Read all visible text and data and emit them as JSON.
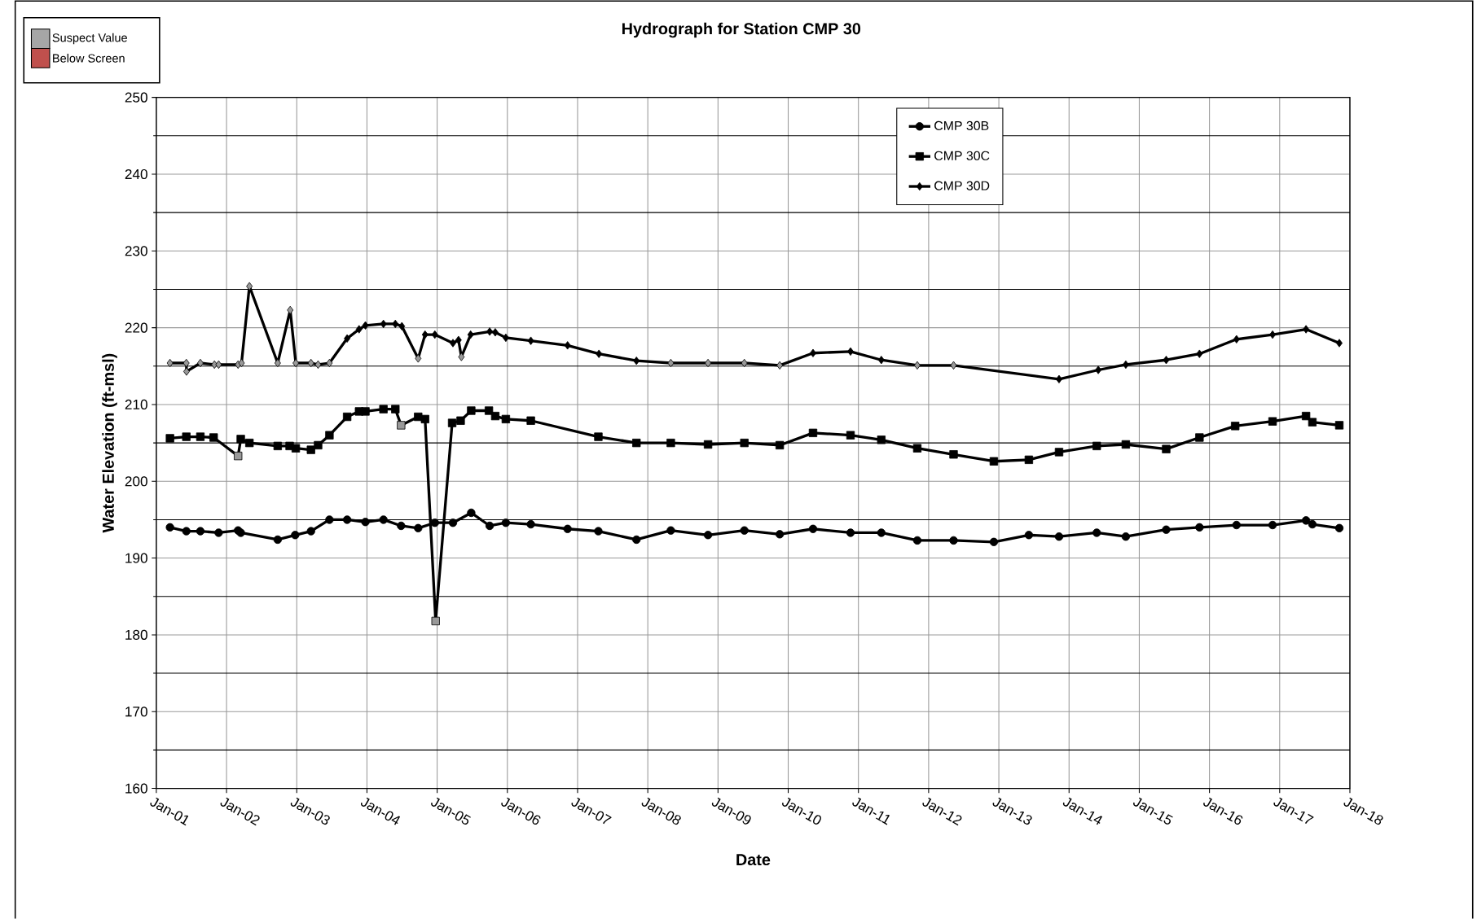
{
  "chart_data": {
    "type": "line",
    "title": "Hydrograph for Station CMP 30",
    "xlabel": "Date",
    "ylabel": "Water Elevation (ft-msl)",
    "annotations": [
      "Suspect Value",
      "Below Screen"
    ],
    "xlim": [
      "2001-01-01",
      "2018-01-01"
    ],
    "ylim": [
      160,
      250
    ],
    "xticks": [
      {
        "value": "2001-01-01",
        "label": "Jan-01"
      },
      {
        "value": "2002-01-01",
        "label": "Jan-02"
      },
      {
        "value": "2003-01-01",
        "label": "Jan-03"
      },
      {
        "value": "2004-01-01",
        "label": "Jan-04"
      },
      {
        "value": "2005-01-01",
        "label": "Jan-05"
      },
      {
        "value": "2006-01-01",
        "label": "Jan-06"
      },
      {
        "value": "2007-01-01",
        "label": "Jan-07"
      },
      {
        "value": "2008-01-01",
        "label": "Jan-08"
      },
      {
        "value": "2009-01-01",
        "label": "Jan-09"
      },
      {
        "value": "2010-01-01",
        "label": "Jan-10"
      },
      {
        "value": "2011-01-01",
        "label": "Jan-11"
      },
      {
        "value": "2012-01-01",
        "label": "Jan-12"
      },
      {
        "value": "2013-01-01",
        "label": "Jan-13"
      },
      {
        "value": "2014-01-01",
        "label": "Jan-14"
      },
      {
        "value": "2015-01-01",
        "label": "Jan-15"
      },
      {
        "value": "2016-01-01",
        "label": "Jan-16"
      },
      {
        "value": "2017-01-01",
        "label": "Jan-17"
      },
      {
        "value": "2018-01-01",
        "label": "Jan-18"
      }
    ],
    "yticks": [
      160,
      {
        "value": 165,
        "label": null
      },
      170,
      {
        "value": 175,
        "label": null
      },
      180,
      {
        "value": 185,
        "label": null
      },
      190,
      {
        "value": 195,
        "label": null
      },
      200,
      {
        "value": 205,
        "label": null
      },
      210,
      {
        "value": 215,
        "label": null
      },
      220,
      {
        "value": 225,
        "label": null
      },
      230,
      {
        "value": 235,
        "label": null
      },
      240,
      {
        "value": 245,
        "label": null
      },
      250
    ],
    "grid": true,
    "legend": "top right",
    "line_style": "solid",
    "series": [
      {
        "name": "CMP 30B",
        "color": "#000000",
        "marker": "circle",
        "x": [
          "2001-03-13",
          "2001-06-06",
          "2001-08-18",
          "2001-11-21",
          "2002-03-02",
          "2002-03-16",
          "2002-09-24",
          "2002-12-24",
          "2003-03-16",
          "2003-06-20",
          "2003-09-20",
          "2003-12-24",
          "2004-03-27",
          "2004-06-27",
          "2004-09-24",
          "2004-12-20",
          "2005-03-24",
          "2005-06-27",
          "2005-10-01",
          "2005-12-24",
          "2006-05-03",
          "2006-11-10",
          "2007-04-19",
          "2007-11-03",
          "2008-04-30",
          "2008-11-10",
          "2009-05-18",
          "2009-11-18",
          "2010-05-10",
          "2010-11-21",
          "2011-04-30",
          "2011-11-03",
          "2012-05-10",
          "2012-12-06",
          "2013-06-06",
          "2013-11-10",
          "2014-05-25",
          "2014-10-23",
          "2015-05-21",
          "2015-11-10",
          "2016-05-21",
          "2016-11-25",
          "2017-05-18",
          "2017-06-20",
          "2017-11-07"
        ],
        "values": [
          194.0,
          193.5,
          193.5,
          193.3,
          193.6,
          193.3,
          192.4,
          193.0,
          193.5,
          195.0,
          195.0,
          194.7,
          195.0,
          194.2,
          193.9,
          194.6,
          194.6,
          195.9,
          194.2,
          194.6,
          194.4,
          193.8,
          193.5,
          192.4,
          193.6,
          193.0,
          193.6,
          193.1,
          193.8,
          193.3,
          193.3,
          192.3,
          192.3,
          192.1,
          193.0,
          192.8,
          193.3,
          192.8,
          193.7,
          194.0,
          194.3,
          194.3,
          194.9,
          194.4,
          193.9
        ]
      },
      {
        "name": "CMP 30C",
        "color": "#000000",
        "marker": "square",
        "x": [
          "2001-03-13",
          "2001-06-06",
          "2001-08-18",
          "2001-10-26",
          "2002-03-02",
          "2002-03-16",
          "2002-04-30",
          "2002-09-24",
          "2002-11-25",
          "2002-12-27",
          "2003-03-16",
          "2003-04-22",
          "2003-06-20",
          "2003-09-20",
          "2003-11-21",
          "2003-12-24",
          "2004-03-27",
          "2004-05-28",
          "2004-06-27",
          "2004-09-24",
          "2004-10-30",
          "2004-12-24",
          "2005-03-20",
          "2005-05-03",
          "2005-06-27",
          "2005-09-27",
          "2005-10-30",
          "2005-12-24",
          "2006-05-03",
          "2007-04-19",
          "2007-11-03",
          "2008-04-30",
          "2008-11-10",
          "2009-05-18",
          "2009-11-18",
          "2010-05-10",
          "2010-11-21",
          "2011-04-30",
          "2011-11-03",
          "2012-05-10",
          "2012-12-06",
          "2013-06-06",
          "2013-11-10",
          "2014-05-25",
          "2014-10-23",
          "2015-05-21",
          "2015-11-10",
          "2016-05-14",
          "2016-11-25",
          "2017-05-18",
          "2017-06-20",
          "2017-11-07"
        ],
        "values": [
          205.6,
          205.8,
          205.8,
          205.7,
          203.3,
          205.5,
          205.0,
          204.6,
          204.6,
          204.3,
          204.1,
          204.7,
          206.0,
          208.4,
          209.1,
          209.1,
          209.4,
          209.4,
          207.3,
          208.4,
          208.1,
          181.8,
          207.6,
          207.9,
          209.2,
          209.2,
          208.5,
          208.1,
          207.9,
          205.8,
          205.0,
          205.0,
          204.8,
          205.0,
          204.7,
          206.3,
          206.0,
          205.4,
          204.3,
          203.5,
          202.6,
          202.8,
          203.8,
          204.6,
          204.8,
          204.2,
          205.7,
          207.2,
          207.8,
          208.5,
          207.7,
          207.3
        ],
        "colors": [
          "#000000",
          "#000000",
          "#000000",
          "#000000",
          "#999999",
          "#000000",
          "#000000",
          "#000000",
          "#000000",
          "#000000",
          "#000000",
          "#000000",
          "#000000",
          "#000000",
          "#000000",
          "#000000",
          "#000000",
          "#000000",
          "#999999",
          "#000000",
          "#000000",
          "#999999",
          "#000000",
          "#000000",
          "#000000",
          "#000000",
          "#000000",
          "#000000",
          "#000000",
          "#000000",
          "#000000",
          "#000000",
          "#000000",
          "#000000",
          "#000000",
          "#000000",
          "#000000",
          "#000000",
          "#000000",
          "#000000",
          "#000000",
          "#000000",
          "#000000",
          "#000000",
          "#000000",
          "#000000",
          "#000000",
          "#000000",
          "#000000",
          "#000000",
          "#000000",
          "#000000"
        ]
      },
      {
        "name": "CMP 30D",
        "color": "#000000",
        "marker": "diamond",
        "x": [
          "2001-03-13",
          "2001-06-06",
          "2001-06-07",
          "2001-08-18",
          "2001-10-30",
          "2001-11-21",
          "2002-03-02",
          "2002-03-20",
          "2002-04-30",
          "2002-09-24",
          "2002-11-28",
          "2002-12-27",
          "2003-03-16",
          "2003-04-22",
          "2003-06-20",
          "2003-09-20",
          "2003-11-21",
          "2003-12-24",
          "2004-03-27",
          "2004-05-28",
          "2004-07-01",
          "2004-09-24",
          "2004-10-30",
          "2004-12-20",
          "2005-03-24",
          "2005-04-22",
          "2005-05-07",
          "2005-06-24",
          "2005-10-01",
          "2005-10-30",
          "2005-12-24",
          "2006-05-03",
          "2006-11-10",
          "2007-04-22",
          "2007-11-03",
          "2008-04-30",
          "2008-11-10",
          "2009-05-18",
          "2009-11-18",
          "2010-05-10",
          "2010-11-21",
          "2011-04-30",
          "2011-11-03",
          "2012-05-10",
          "2013-11-10",
          "2014-06-02",
          "2014-10-23",
          "2015-05-21",
          "2015-11-10",
          "2016-05-21",
          "2016-11-25",
          "2017-05-18",
          "2017-11-07"
        ],
        "values": [
          215.4,
          215.4,
          214.3,
          215.4,
          215.2,
          215.2,
          215.2,
          215.4,
          225.4,
          215.4,
          222.3,
          215.4,
          215.4,
          215.2,
          215.4,
          218.6,
          219.8,
          220.3,
          220.5,
          220.5,
          220.2,
          216.0,
          219.1,
          219.1,
          218.0,
          218.4,
          216.2,
          219.1,
          219.5,
          219.4,
          218.7,
          218.3,
          217.7,
          216.6,
          215.7,
          215.4,
          215.4,
          215.4,
          215.1,
          216.7,
          216.9,
          215.8,
          215.1,
          215.1,
          213.3,
          214.5,
          215.2,
          215.8,
          216.6,
          218.5,
          219.1,
          219.8,
          218.0
        ],
        "colors": [
          "#999999",
          "#999999",
          "#999999",
          "#999999",
          "#999999",
          "#999999",
          "#999999",
          "#999999",
          "#999999",
          "#999999",
          "#999999",
          "#999999",
          "#999999",
          "#999999",
          "#999999",
          "#000000",
          "#000000",
          "#000000",
          "#000000",
          "#000000",
          "#000000",
          "#999999",
          "#000000",
          "#000000",
          "#000000",
          "#000000",
          "#999999",
          "#000000",
          "#000000",
          "#000000",
          "#000000",
          "#000000",
          "#000000",
          "#000000",
          "#000000",
          "#999999",
          "#999999",
          "#999999",
          "#999999",
          "#000000",
          "#000000",
          "#000000",
          "#999999",
          "#999999",
          "#000000",
          "#000000",
          "#000000",
          "#000000",
          "#000000",
          "#000000",
          "#000000",
          "#000000",
          "#000000"
        ]
      }
    ]
  }
}
